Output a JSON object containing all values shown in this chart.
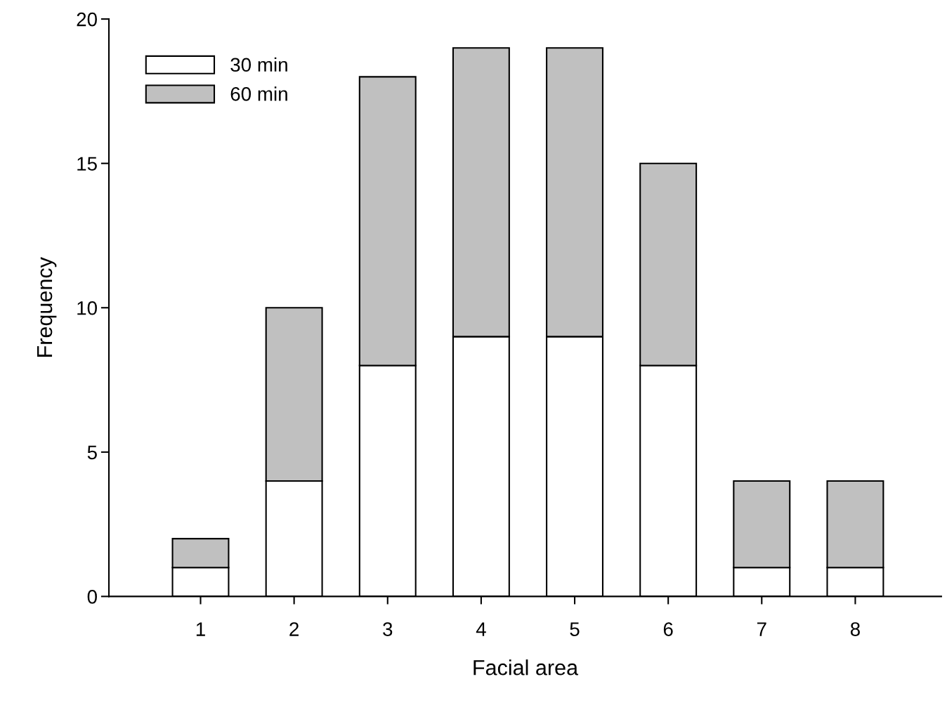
{
  "chart_data": {
    "type": "bar",
    "stacked": true,
    "xlabel": "Facial area",
    "ylabel": "Frequency",
    "categories": [
      "1",
      "2",
      "3",
      "4",
      "5",
      "6",
      "7",
      "8"
    ],
    "series": [
      {
        "name": "30 min",
        "color": "#ffffff",
        "values": [
          1,
          4,
          8,
          9,
          9,
          8,
          1,
          1
        ]
      },
      {
        "name": "60 min",
        "color": "#c0c0c0",
        "values": [
          1,
          6,
          10,
          10,
          10,
          7,
          3,
          3
        ]
      }
    ],
    "ylim": [
      0,
      20
    ],
    "yticks": [
      0,
      5,
      10,
      15,
      20
    ],
    "grid": false,
    "legend": "top left"
  }
}
